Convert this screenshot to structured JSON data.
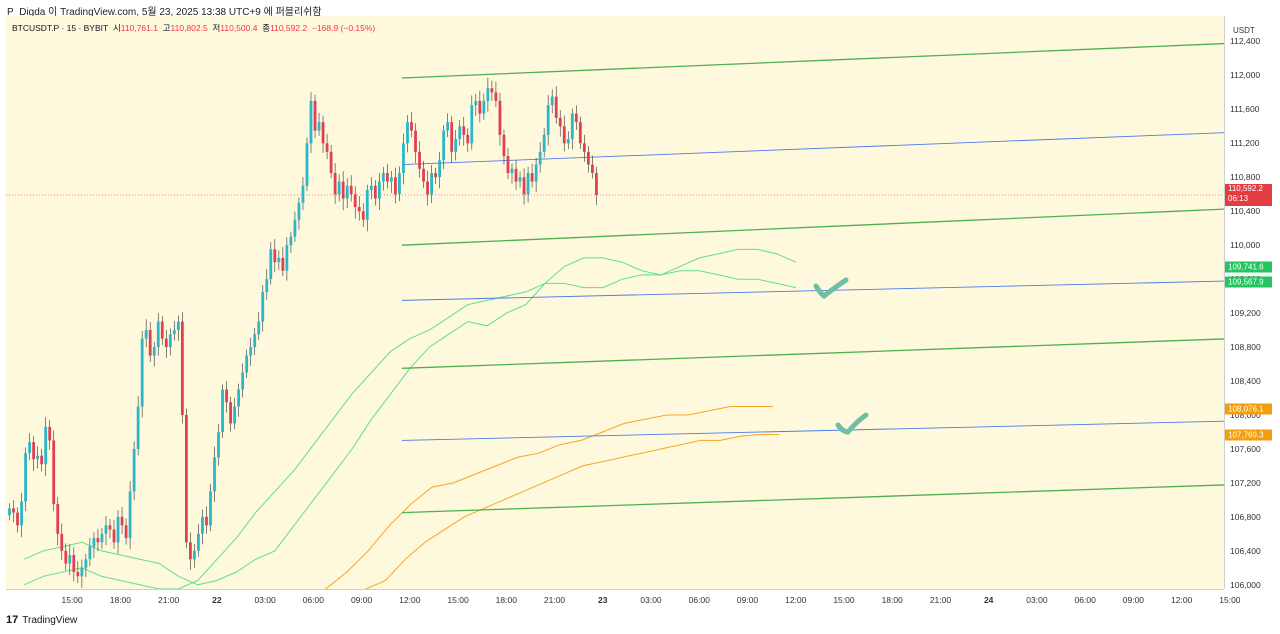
{
  "header": {
    "title": "P_Digda 이 TradingView.com, 5월 23, 2025 13:38 UTC+9 에 퍼블리쉬함"
  },
  "legend": {
    "symbol": "BTCUSDT.P · 15 · BYBIT",
    "open_label": "시",
    "open": "110,761.1",
    "high_label": "고",
    "high": "110,802.5",
    "low_label": "저",
    "low": "110,500.4",
    "close_label": "종",
    "close": "110,592.2",
    "change": "−168.9 (−0.15%)"
  },
  "axis": {
    "currency": "USDT",
    "current_price": "110,592.2",
    "countdown": "06:13",
    "labels": [
      {
        "value": "109,741.6",
        "color": "#22c55e"
      },
      {
        "value": "109,567.9",
        "color": "#22c55e"
      },
      {
        "value": "108,076.1",
        "color": "#f59e0b"
      },
      {
        "value": "107,769.3",
        "color": "#f59e0b"
      }
    ]
  },
  "footer": {
    "logo": "17",
    "brand": "TradingView"
  },
  "colors": {
    "up": "#26a69a",
    "up_candle": "#2ab7c8",
    "down": "#e04050",
    "channel_green": "#4caf50",
    "channel_blue": "#4a7ce8",
    "band_green": "#5ee08a",
    "band_orange": "#f5a623",
    "checkmark": "#6fbfa4",
    "background": "#fef8dd"
  },
  "chart_data": {
    "type": "candlestick",
    "symbol": "BTCUSDT.P",
    "interval": "15",
    "ylim": [
      105950,
      112700
    ],
    "y_ticks": [
      106000,
      106400,
      106800,
      107200,
      107600,
      108000,
      108400,
      108800,
      109200,
      109600,
      110000,
      110400,
      110800,
      111200,
      111600,
      112000,
      112400
    ],
    "y_tick_labels": [
      "106,000",
      "106,400",
      "106,800",
      "107,200",
      "107,600",
      "108,000",
      "108,400",
      "108,800",
      "109,200",
      "109,600",
      "110,000",
      "110,400",
      "110,800",
      "111,200",
      "111,600",
      "112,000",
      "112,400"
    ],
    "x_ticks": [
      {
        "label": "15:00",
        "bar": 7
      },
      {
        "label": "18:00",
        "bar": 19
      },
      {
        "label": "21:00",
        "bar": 31
      },
      {
        "label": "22",
        "bar": 43,
        "bold": true
      },
      {
        "label": "03:00",
        "bar": 55
      },
      {
        "label": "06:00",
        "bar": 67
      },
      {
        "label": "09:00",
        "bar": 79
      },
      {
        "label": "12:00",
        "bar": 91
      },
      {
        "label": "15:00",
        "bar": 103
      },
      {
        "label": "18:00",
        "bar": 115
      },
      {
        "label": "21:00",
        "bar": 127
      },
      {
        "label": "23",
        "bar": 139,
        "bold": true
      },
      {
        "label": "03:00",
        "bar": 151
      },
      {
        "label": "06:00",
        "bar": 163
      },
      {
        "label": "09:00",
        "bar": 175
      },
      {
        "label": "12:00",
        "bar": 187
      },
      {
        "label": "15:00",
        "bar": 199
      },
      {
        "label": "18:00",
        "bar": 211
      },
      {
        "label": "21:00",
        "bar": 223
      },
      {
        "label": "24",
        "bar": 235,
        "bold": true
      },
      {
        "label": "03:00",
        "bar": 247
      },
      {
        "label": "06:00",
        "bar": 259
      },
      {
        "label": "09:00",
        "bar": 271
      },
      {
        "label": "12:00",
        "bar": 283
      },
      {
        "label": "15:00",
        "bar": 295
      }
    ],
    "price_closes": [
      106900,
      106850,
      106700,
      106980,
      107550,
      107680,
      107480,
      107520,
      107420,
      107860,
      107700,
      106950,
      106600,
      106400,
      106250,
      106350,
      106150,
      106100,
      106200,
      106300,
      106450,
      106550,
      106500,
      106600,
      106700,
      106650,
      106500,
      106800,
      106700,
      106550,
      107100,
      107600,
      108100,
      108900,
      109000,
      108700,
      108800,
      109100,
      108900,
      108800,
      108950,
      109000,
      109100,
      108000,
      106500,
      106300,
      106400,
      106600,
      106800,
      106700,
      107100,
      107500,
      107800,
      108300,
      108150,
      107900,
      108100,
      108300,
      108500,
      108700,
      108800,
      108950,
      109100,
      109450,
      109600,
      109950,
      109800,
      109850,
      109700,
      110000,
      110100,
      110300,
      110500,
      110700,
      111200,
      111700,
      111350,
      111450,
      111200,
      111100,
      110850,
      110600,
      110750,
      110550,
      110700,
      110600,
      110450,
      110400,
      110300,
      110650,
      110700,
      110550,
      110750,
      110850,
      110750,
      110800,
      110600,
      110850,
      111200,
      111450,
      111350,
      111100,
      110900,
      110750,
      110600,
      110850,
      110800,
      111000,
      111350,
      111450,
      111100,
      111250,
      111400,
      111300,
      111200,
      111650,
      111700,
      111550,
      111700,
      111850,
      111800,
      111700,
      111300,
      111050,
      110850,
      110900,
      110750,
      110800,
      110600,
      110850,
      110750,
      110950,
      111100,
      111300,
      111650,
      111750,
      111500,
      111400,
      111200,
      111250,
      111550,
      111450,
      111200,
      111100,
      110950,
      110850,
      110592
    ],
    "green_channel": [
      {
        "label": "upper",
        "start": [
          98,
          111970
        ],
        "end": [
          305,
          112380
        ]
      },
      {
        "label": "mid",
        "start": [
          98,
          110000
        ],
        "end": [
          305,
          110430
        ]
      },
      {
        "label": "lower1",
        "start": [
          98,
          108550
        ],
        "end": [
          305,
          108900
        ]
      },
      {
        "label": "lower2",
        "start": [
          98,
          106850
        ],
        "end": [
          305,
          107180
        ]
      }
    ],
    "blue_lines": [
      {
        "start": [
          98,
          110950
        ],
        "end": [
          305,
          111330
        ]
      },
      {
        "start": [
          98,
          109350
        ],
        "end": [
          305,
          109580
        ]
      },
      {
        "start": [
          98,
          107700
        ],
        "end": [
          305,
          107930
        ]
      }
    ],
    "green_band_upper": [
      106300,
      106400,
      106450,
      106500,
      106400,
      106350,
      106300,
      106250,
      106100,
      106000,
      106050,
      106150,
      106300,
      106400,
      106700,
      107000,
      107300,
      107600,
      107950,
      108250,
      108550,
      108800,
      108950,
      109100,
      109050,
      109200,
      109300,
      109550,
      109750,
      109850,
      109850,
      109800,
      109700,
      109650,
      109750,
      109850,
      109900,
      109950,
      109950,
      109900,
      109800
    ],
    "green_band_lower": [
      106000,
      106100,
      106150,
      106200,
      106100,
      106050,
      106000,
      105950,
      105950,
      106050,
      106300,
      106550,
      106850,
      107100,
      107350,
      107650,
      107950,
      108250,
      108500,
      108750,
      108900,
      109000,
      109150,
      109300,
      109350,
      109400,
      109450,
      109550,
      109550,
      109500,
      109500,
      109600,
      109650,
      109650,
      109700,
      109700,
      109650,
      109600,
      109600,
      109550,
      109500
    ],
    "orange_band_upper": [
      105950,
      106150,
      106400,
      106700,
      106950,
      107150,
      107200,
      107300,
      107400,
      107500,
      107550,
      107650,
      107700,
      107800,
      107900,
      107950,
      108000,
      108000,
      108050,
      108100,
      108100,
      108100
    ],
    "orange_band_lower": [
      105950,
      106050,
      106300,
      106500,
      106650,
      106800,
      106900,
      107000,
      107100,
      107200,
      107300,
      107400,
      107450,
      107500,
      107550,
      107600,
      107650,
      107700,
      107700,
      107750,
      107770,
      107769
    ]
  }
}
